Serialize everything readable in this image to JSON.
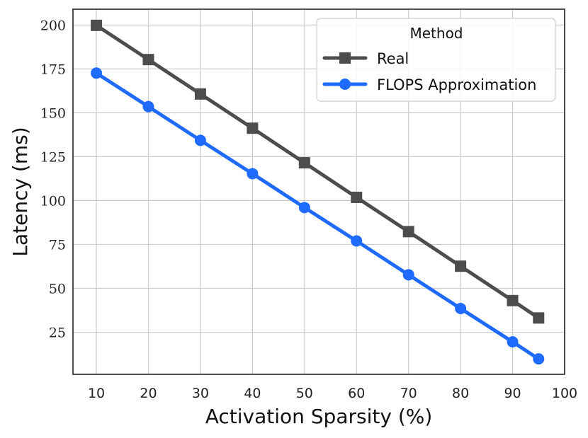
{
  "chart_data": {
    "type": "line",
    "title": "",
    "xlabel": "Activation Sparsity (%)",
    "ylabel": "Latency (ms)",
    "xlim": [
      5.5,
      100
    ],
    "ylim": [
      1,
      209
    ],
    "xticks": [
      10,
      20,
      30,
      40,
      50,
      60,
      70,
      80,
      90,
      100
    ],
    "yticks": [
      25,
      50,
      75,
      100,
      125,
      150,
      175,
      200
    ],
    "grid": true,
    "legend": {
      "title": "Method",
      "position": "top-right"
    },
    "x": [
      10,
      20,
      30,
      40,
      50,
      60,
      70,
      80,
      90,
      95
    ],
    "series": [
      {
        "name": "Real",
        "color": "#4d4d4d",
        "marker": "square",
        "values": [
          199.8,
          180.3,
          160.7,
          141.2,
          121.5,
          101.8,
          82.3,
          62.6,
          43.0,
          33.1
        ]
      },
      {
        "name": "FLOPS Approximation",
        "color": "#1f6bff",
        "marker": "circle",
        "values": [
          172.6,
          153.5,
          134.3,
          115.3,
          96.0,
          77.0,
          57.7,
          38.5,
          19.5,
          9.8
        ]
      }
    ]
  }
}
